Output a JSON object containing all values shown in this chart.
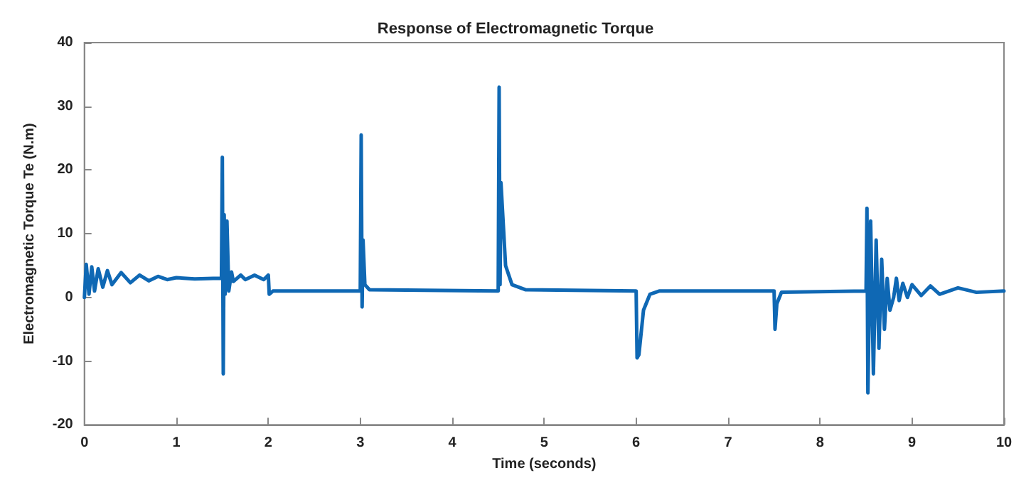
{
  "chart_data": {
    "type": "line",
    "title": "Response of Electromagnetic Torque",
    "xlabel": "Time (seconds)",
    "ylabel": "Electromagnetic Torque Te (N.m)",
    "x": [
      0,
      0.02,
      0.05,
      0.08,
      0.11,
      0.15,
      0.2,
      0.25,
      0.3,
      0.4,
      0.5,
      0.6,
      0.7,
      0.8,
      0.9,
      1.0,
      1.2,
      1.4,
      1.49,
      1.5,
      1.51,
      1.52,
      1.53,
      1.55,
      1.57,
      1.6,
      1.62,
      1.7,
      1.75,
      1.85,
      1.95,
      2.0,
      2.01,
      2.05,
      3.0,
      3.01,
      3.02,
      3.03,
      3.05,
      3.1,
      4.5,
      4.51,
      4.52,
      4.53,
      4.58,
      4.65,
      4.8,
      6.0,
      6.01,
      6.03,
      6.08,
      6.15,
      6.25,
      7.5,
      7.51,
      7.53,
      7.58,
      8.5,
      8.51,
      8.52,
      8.55,
      8.58,
      8.61,
      8.64,
      8.67,
      8.7,
      8.73,
      8.76,
      8.8,
      8.83,
      8.86,
      8.9,
      8.95,
      9.0,
      9.1,
      9.2,
      9.3,
      9.5,
      9.7,
      10
    ],
    "series": [
      {
        "color": "#0f68b4",
        "values": [
          0,
          5.2,
          0.5,
          4.8,
          1.0,
          4.5,
          1.6,
          4.2,
          2.0,
          3.9,
          2.3,
          3.5,
          2.6,
          3.3,
          2.8,
          3.1,
          2.9,
          3.0,
          3.0,
          22,
          -12,
          13,
          0.5,
          12,
          1,
          4,
          2.5,
          3.5,
          2.8,
          3.5,
          2.8,
          3.5,
          0.5,
          1.0,
          1.0,
          25.5,
          -1.5,
          9,
          2,
          1.2,
          1.0,
          33,
          2,
          18,
          5,
          2,
          1.2,
          1.0,
          -9.5,
          -9,
          -2,
          0.5,
          1.0,
          1.0,
          -5,
          -1,
          0.8,
          1.0,
          14,
          -15,
          12,
          -12,
          9,
          -8,
          6,
          -5,
          3,
          -2,
          0,
          3,
          -0.5,
          2.2,
          0,
          2,
          0.3,
          1.8,
          0.5,
          1.5,
          0.8,
          1.0
        ]
      }
    ],
    "xlim": [
      0,
      10
    ],
    "xticks": [
      0,
      1,
      2,
      3,
      4,
      5,
      6,
      7,
      8,
      9,
      10
    ],
    "ylim": [
      -20,
      40
    ],
    "yticks": [
      -20,
      -10,
      0,
      10,
      20,
      30,
      40
    ],
    "grid": false,
    "marker": "none",
    "line_style": "solid"
  }
}
